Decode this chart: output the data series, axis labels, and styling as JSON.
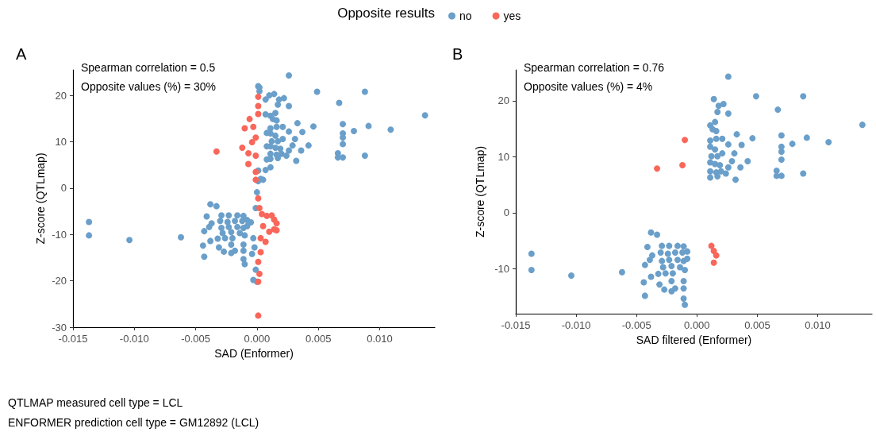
{
  "chart_data": [
    {
      "type": "scatter",
      "title": "A",
      "xlabel": "SAD (Enformer)",
      "ylabel": "Z-score (QTLmap)",
      "legend_title": "Opposite results",
      "legend": "top",
      "marker": "circle",
      "grid": false,
      "xlim": [
        -0.015,
        0.0145
      ],
      "ylim": [
        -30,
        25.5
      ],
      "xticks": [
        {
          "value": -0.015,
          "label": "-0.015"
        },
        {
          "value": -0.01,
          "label": "-0.010"
        },
        {
          "value": -0.005,
          "label": "-0.005"
        },
        {
          "value": 0,
          "label": "0.000"
        },
        {
          "value": 0.005,
          "label": "0.005"
        },
        {
          "value": 0.01,
          "label": "0.010"
        }
      ],
      "yticks": [
        -30,
        -20,
        -10,
        0,
        10,
        20
      ],
      "annotations": [
        "Spearman correlation = 0.5",
        "Opposite values (%) = 30%",
        "QTLMAP measured cell type = LCL",
        "ENFORMER prediction cell type = GM12892 (LCL)"
      ],
      "series": [
        {
          "name": "no",
          "color": "#6a9fca",
          "x": [
            0.0026,
            0.0014,
            0.0049,
            0.0088,
            0.0018,
            0.0022,
            0.0017,
            0.0026,
            0.0067,
            0.0137,
            0.0046,
            0.007,
            0.0091,
            0.0109,
            0.0079,
            0.007,
            0.007,
            0.007,
            0.0066,
            0.0066,
            0.007,
            0.0088,
            0.0042,
            0.0036,
            0.0032,
            0.0033,
            0.0037,
            0.0031,
            0.0029,
            0.0026,
            0.0011,
            0.0015,
            0.0013,
            0.0016,
            0.0011,
            0.0016,
            0.0021,
            0.0026,
            0.0011,
            0.0015,
            0.0012,
            0.0017,
            0.0021,
            0.0011,
            0.0015,
            0.0019,
            0.0011,
            0.0016,
            0.002,
            0.0024,
            0.0011,
            0.0017,
            0.0002,
            0.0002,
            0.0007,
            0.0005,
            0.0003,
            0.001,
            0.0007,
            0.0008,
            0.0008,
            0.0008,
            0.0007,
            0.0011,
            0.0001,
            0.0001,
            -0.0137,
            -0.0137,
            -0.0104,
            -0.0062,
            -0.0038,
            -0.0033,
            -0.0041,
            -0.0037,
            -0.0039,
            -0.0043,
            -0.0044,
            -0.0043,
            -0.0038,
            -0.0032,
            -0.0031,
            -0.0027,
            -0.0021,
            -0.0018,
            -0.0011,
            -0.0011,
            -0.001,
            -0.0011,
            -0.0021,
            -0.0026,
            -0.002,
            -0.0029,
            -0.0023,
            -0.0016,
            -0.0011,
            -0.003,
            -0.0024,
            -0.0018,
            -0.0012,
            -0.0008,
            -0.0029,
            -0.0023,
            -0.0016,
            -0.0011,
            -0.0008,
            -0.0028,
            -0.0021,
            -0.0014,
            -0.001,
            -0.0003,
            -0.0001,
            -0.0003,
            0,
            -0.0005,
            -0.0004,
            -0.0002,
            -0.0001,
            0,
            0.0001
          ],
          "values": [
            24.3,
            20.3,
            20.8,
            20.8,
            19.1,
            19.4,
            18,
            17.7,
            18.4,
            15.7,
            13.3,
            13.8,
            13.4,
            12.6,
            12.3,
            11.8,
            10.9,
            9.5,
            7.5,
            6.6,
            6.6,
            7,
            9.2,
            8.1,
            5.9,
            14,
            12.1,
            10.6,
            9.2,
            8.1,
            15.6,
            16.2,
            14.9,
            14.6,
            12.9,
            13.2,
            13.2,
            12.2,
            11.8,
            11.3,
            10.1,
            10.1,
            10.6,
            9,
            8.7,
            8.5,
            7.4,
            7.2,
            7.4,
            7,
            6.3,
            6.5,
            21.7,
            20.9,
            19.1,
            1.8,
            2,
            20,
            15.9,
            11.9,
            9,
            6.2,
            3.9,
            4.5,
            22,
            3.8,
            -7.3,
            -10.2,
            -11.2,
            -10.6,
            -3.5,
            -3.9,
            -6.1,
            -7.6,
            -8.4,
            -9.3,
            -12.4,
            -14.8,
            -11.4,
            -10.9,
            -12.8,
            -13.7,
            -14,
            -13.5,
            -13.5,
            -15.3,
            -16.4,
            -12.2,
            -12.2,
            -10.8,
            -10.8,
            -5.9,
            -5.9,
            -5.9,
            -6,
            -7.1,
            -7.3,
            -7.1,
            -7.1,
            -6.9,
            -8.6,
            -8.4,
            -8.4,
            -8.6,
            -8.2,
            -9.7,
            -9.5,
            -9.7,
            -10.2,
            -10.8,
            -17.6,
            -19.8,
            -20.2,
            -7.4,
            -14.2,
            -12.8,
            -4.3,
            -0.9,
            1.5
          ]
        },
        {
          "name": "yes",
          "color": "#f8675a",
          "x": [
            -0.0033,
            -0.0012,
            0.0001,
            0.0001,
            -0.0006,
            -0.001,
            -0.0003,
            -0.0001,
            -0.0007,
            -0.0007,
            -0.0001,
            -0.0001,
            -0.0004,
            0.0001,
            -0.0001,
            0.0001,
            0.0002,
            0.0004,
            0.0008,
            0.0005,
            0.001,
            0.0003,
            0.0007,
            0.0003,
            0.0001,
            0.0002,
            0.0001,
            0.0001,
            0.0016,
            0.0012,
            0.0014,
            0.0016,
            0.0014
          ],
          "values": [
            7.9,
            8.7,
            19.7,
            17.7,
            14.9,
            12.9,
            13.2,
            10.9,
            7.5,
            5.2,
            3.5,
            7,
            9.9,
            16,
            1.8,
            -2.2,
            -4.3,
            -5.6,
            -6,
            -8.2,
            -9.4,
            -10.8,
            -11.6,
            -13.8,
            -15.9,
            -18.5,
            -20.2,
            -27.5,
            -9.1,
            -5.9,
            -6.8,
            -7.6,
            -8.9
          ]
        }
      ]
    },
    {
      "type": "scatter",
      "title": "B",
      "xlabel": "SAD filtered (Enformer)",
      "ylabel": "Z-score (QTLmap)",
      "marker": "circle",
      "grid": false,
      "xlim": [
        -0.015,
        0.0145
      ],
      "ylim": [
        -18,
        25.5
      ],
      "xticks": [
        {
          "value": -0.015,
          "label": "-0.015"
        },
        {
          "value": -0.01,
          "label": "-0.010"
        },
        {
          "value": -0.005,
          "label": "-0.005"
        },
        {
          "value": 0,
          "label": "0.000"
        },
        {
          "value": 0.005,
          "label": "0.005"
        },
        {
          "value": 0.01,
          "label": "0.010"
        }
      ],
      "yticks": [
        -10,
        0,
        10,
        20
      ],
      "annotations": [
        "Spearman correlation = 0.76",
        "Opposite values (%) = 4%"
      ],
      "series": [
        {
          "color": "#6a9fca",
          "x": [
            0.0026,
            0.0014,
            0.0049,
            0.0088,
            0.0018,
            0.0022,
            0.0017,
            0.0026,
            0.0067,
            0.0137,
            0.0046,
            0.007,
            0.0091,
            0.0109,
            0.0079,
            0.007,
            0.007,
            0.007,
            0.0066,
            0.0066,
            0.007,
            0.0088,
            0.0042,
            0.0036,
            0.0032,
            0.0033,
            0.0037,
            0.0031,
            0.0029,
            0.0026,
            0.0011,
            0.0015,
            0.0013,
            0.0016,
            0.0011,
            0.0016,
            0.0021,
            0.0026,
            0.0011,
            0.0015,
            0.0012,
            0.0017,
            0.0021,
            0.0011,
            0.0015,
            0.0019,
            0.0011,
            0.0016,
            0.002,
            0.0024,
            0.0011,
            0.0017,
            -0.0137,
            -0.0137,
            -0.0104,
            -0.0062,
            -0.0038,
            -0.0033,
            -0.0041,
            -0.0037,
            -0.0039,
            -0.0043,
            -0.0044,
            -0.0043,
            -0.0038,
            -0.0032,
            -0.0031,
            -0.0027,
            -0.0021,
            -0.0018,
            -0.0011,
            -0.0011,
            -0.001,
            -0.0011,
            -0.0021,
            -0.0026,
            -0.002,
            -0.0029,
            -0.0023,
            -0.0016,
            -0.0011,
            -0.003,
            -0.0024,
            -0.0018,
            -0.0012,
            -0.0008,
            -0.0029,
            -0.0023,
            -0.0016,
            -0.0011,
            -0.0008,
            -0.0028,
            -0.0021,
            -0.0014,
            -0.001
          ],
          "values": [
            24.3,
            20.3,
            20.8,
            20.8,
            19.1,
            19.4,
            18,
            17.7,
            18.4,
            15.7,
            13.3,
            13.8,
            13.4,
            12.6,
            12.3,
            11.8,
            10.9,
            9.5,
            7.5,
            6.6,
            6.6,
            7,
            9.2,
            8.1,
            5.9,
            14,
            12.1,
            10.6,
            9.2,
            8.1,
            15.6,
            16.2,
            14.9,
            14.6,
            12.9,
            13.2,
            13.2,
            12.2,
            11.8,
            11.3,
            10.1,
            10.1,
            10.6,
            9,
            8.7,
            8.5,
            7.4,
            7.2,
            7.4,
            7,
            6.3,
            6.5,
            -7.3,
            -10.2,
            -11.2,
            -10.6,
            -3.5,
            -3.9,
            -6.1,
            -7.6,
            -8.4,
            -9.3,
            -12.4,
            -14.8,
            -11.4,
            -10.9,
            -12.8,
            -13.7,
            -14,
            -13.5,
            -13.5,
            -15.3,
            -16.4,
            -12.2,
            -12.2,
            -10.8,
            -10.8,
            -5.9,
            -5.9,
            -5.9,
            -6,
            -7.1,
            -7.3,
            -7.1,
            -7.1,
            -6.9,
            -8.6,
            -8.4,
            -8.4,
            -8.6,
            -8.2,
            -9.7,
            -9.5,
            -9.7,
            -10.2
          ]
        },
        {
          "color": "#f8675a",
          "x": [
            -0.001,
            -0.0012,
            -0.0033,
            0.0012,
            0.0014,
            0.0016,
            0.0014
          ],
          "values": [
            13,
            8.5,
            7.9,
            -5.9,
            -6.8,
            -7.6,
            -8.9
          ]
        }
      ]
    }
  ]
}
